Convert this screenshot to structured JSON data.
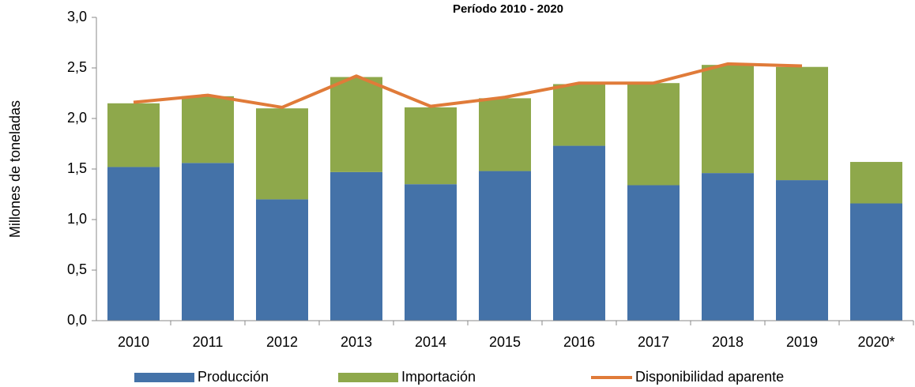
{
  "chart_data": {
    "type": "bar",
    "title": "Período 2010 - 2020",
    "y_label": "Millones de toneladas",
    "categories": [
      "2010",
      "2011",
      "2012",
      "2013",
      "2014",
      "2015",
      "2016",
      "2017",
      "2018",
      "2019",
      "2020*"
    ],
    "stacked": true,
    "series": [
      {
        "name": "Producción",
        "color": "#4472a8",
        "type": "bar",
        "values": [
          1.52,
          1.56,
          1.2,
          1.47,
          1.35,
          1.48,
          1.73,
          1.34,
          1.46,
          1.39,
          1.16
        ]
      },
      {
        "name": "Importación",
        "color": "#8ea84b",
        "type": "bar",
        "values": [
          0.63,
          0.66,
          0.9,
          0.94,
          0.76,
          0.72,
          0.61,
          1.01,
          1.07,
          1.12,
          0.41
        ]
      },
      {
        "name": "Disponibilidad aparente",
        "color": "#e07b39",
        "type": "line",
        "values": [
          2.16,
          2.23,
          2.11,
          2.42,
          2.12,
          2.21,
          2.35,
          2.35,
          2.54,
          2.52,
          null
        ]
      }
    ],
    "ylim": [
      0,
      3
    ],
    "yticks": [
      {
        "value": 0,
        "label": "0,0"
      },
      {
        "value": 0.5,
        "label": "0,5"
      },
      {
        "value": 1,
        "label": "1,0"
      },
      {
        "value": 1.5,
        "label": "1,5"
      },
      {
        "value": 2,
        "label": "2,0"
      },
      {
        "value": 2.5,
        "label": "2,5"
      },
      {
        "value": 3,
        "label": "3,0"
      }
    ],
    "grid": false,
    "legend": "bottom"
  }
}
